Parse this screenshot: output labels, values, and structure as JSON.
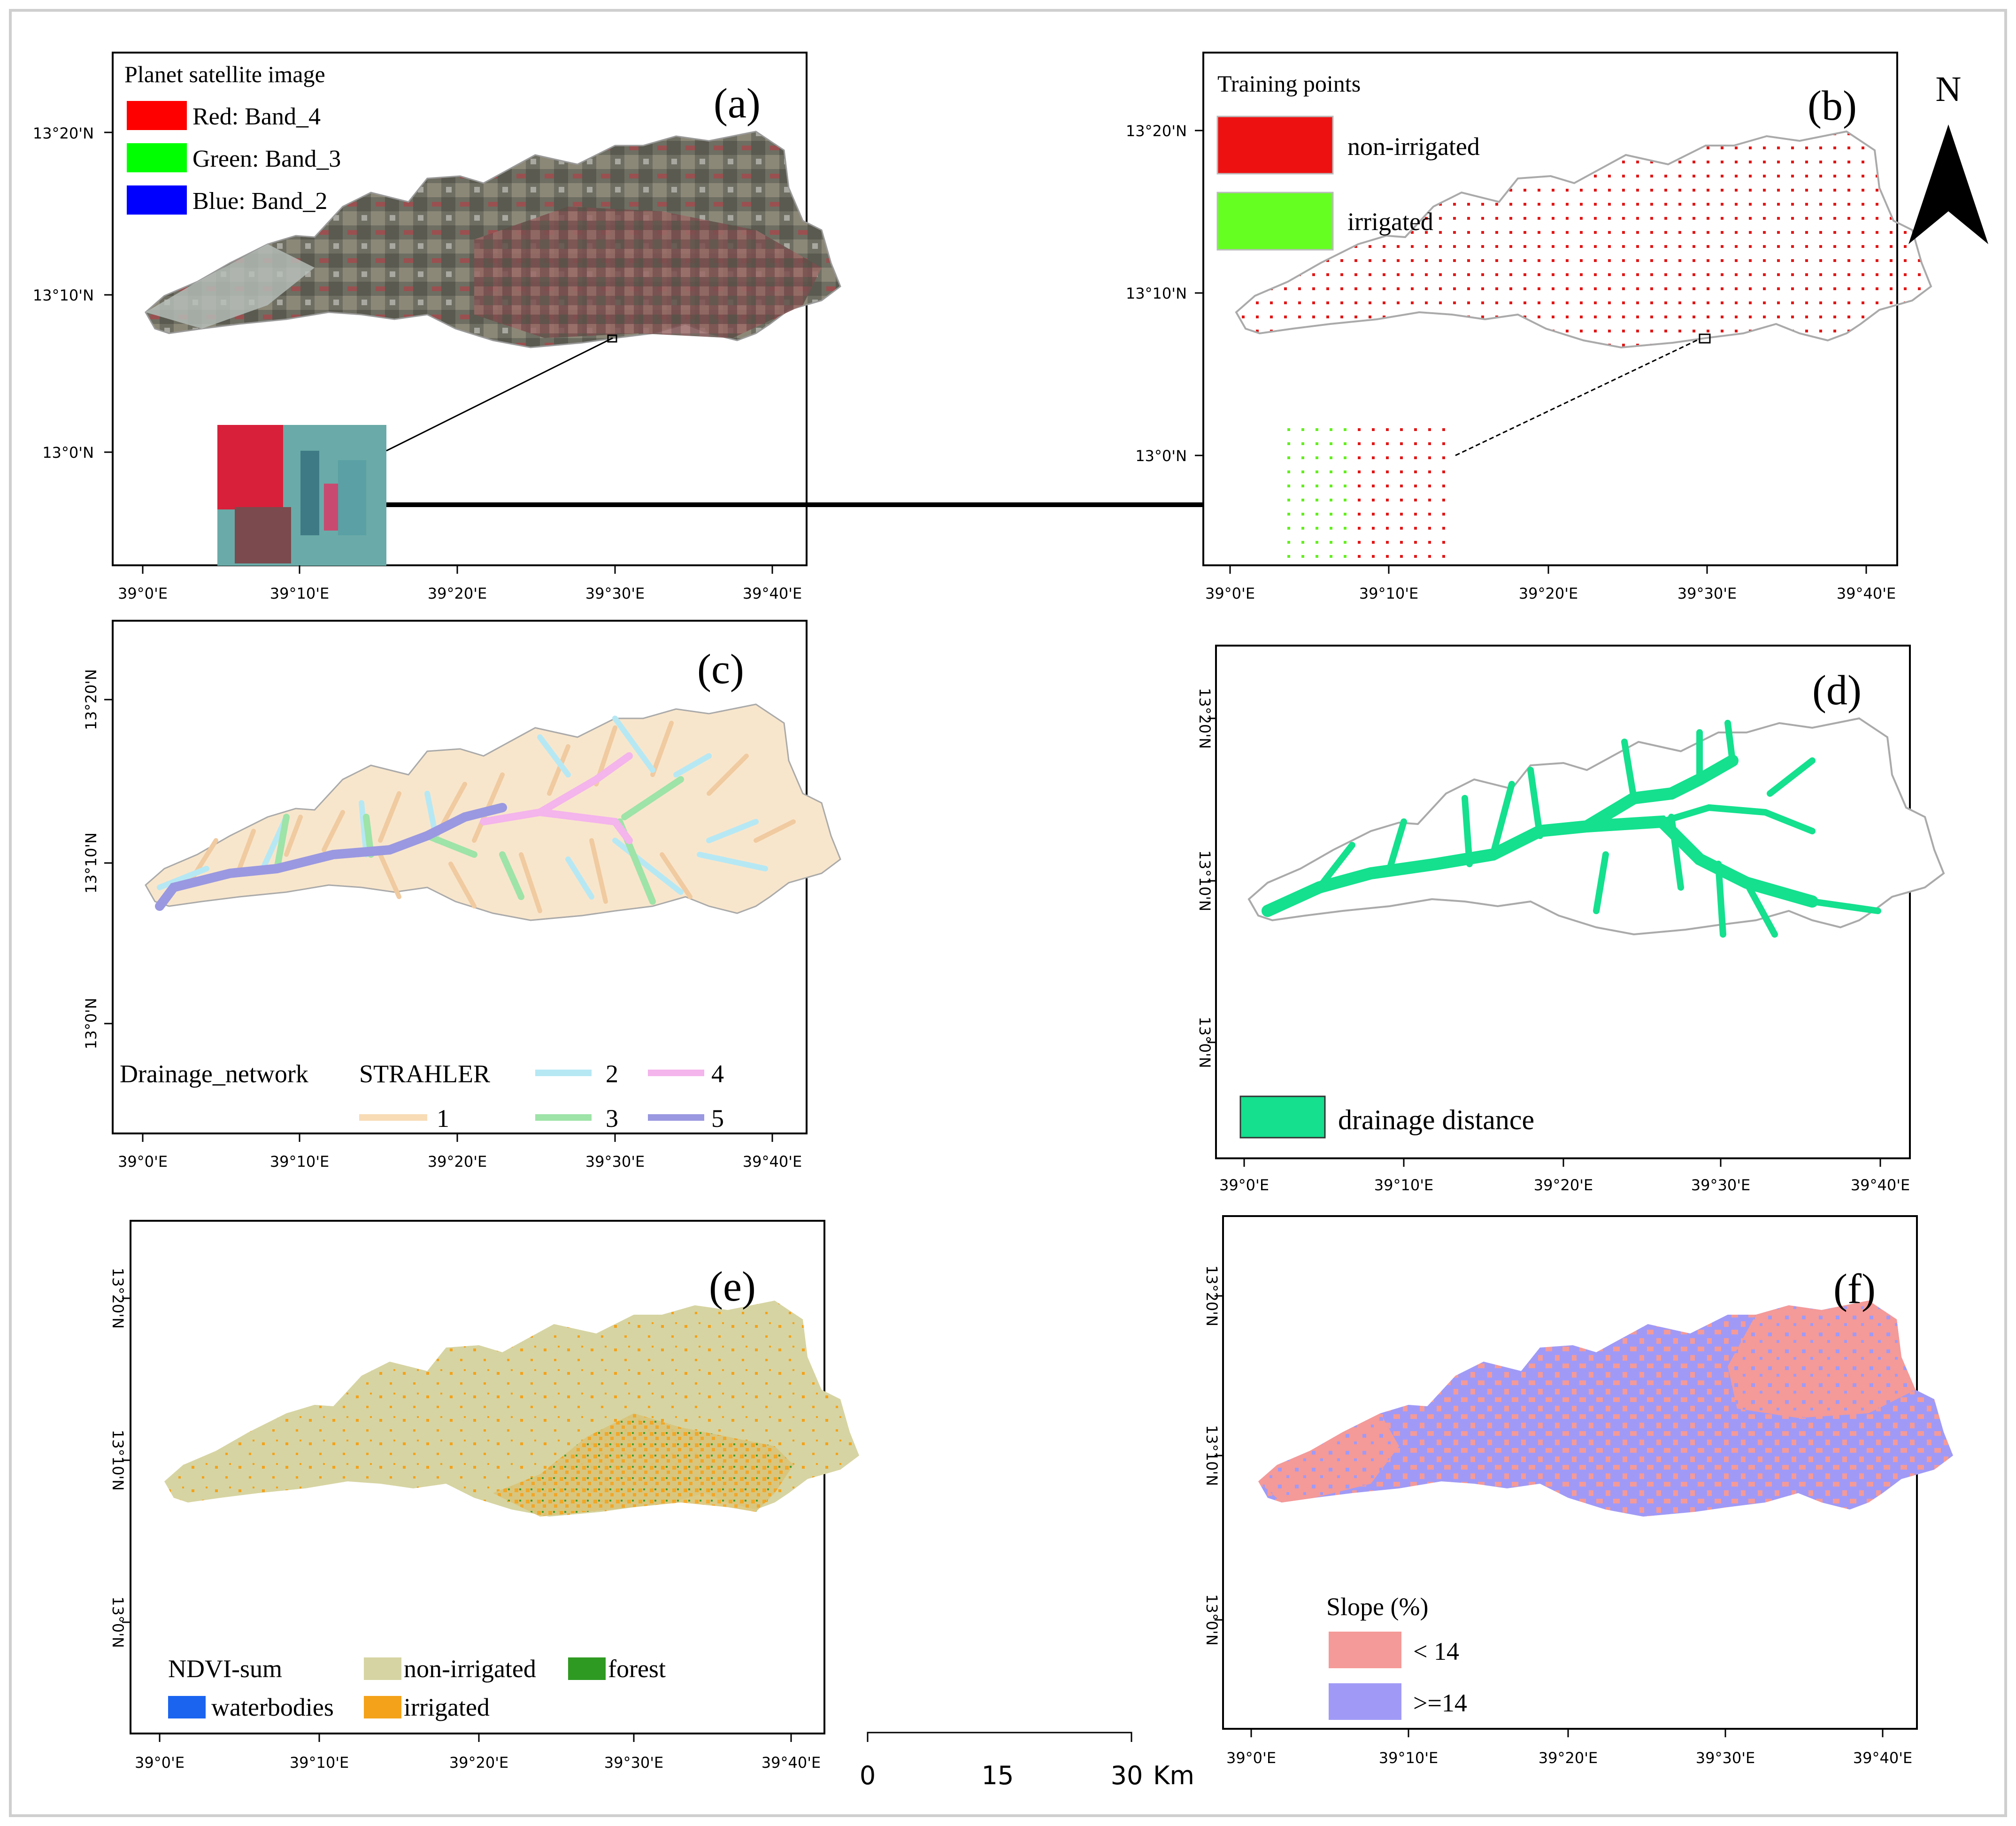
{
  "panels": [
    {
      "id": "a",
      "label": "(a)",
      "legend_title": "Planet satellite image",
      "legend": [
        {
          "label": "Red:    Band_4",
          "color": "#ff0000"
        },
        {
          "label": "Green: Band_3",
          "color": "#00ff00"
        },
        {
          "label": "Blue:   Band_2",
          "color": "#0000ff"
        }
      ],
      "y_ticks": [
        "13°20'N",
        "13°10'N",
        "13°0'N"
      ],
      "x_ticks": [
        "39°0'E",
        "39°10'E",
        "39°20'E",
        "39°30'E",
        "39°40'E"
      ]
    },
    {
      "id": "b",
      "label": "(b)",
      "legend_title": "Training points",
      "legend": [
        {
          "label": "non-irrigated",
          "color": "#ee1111"
        },
        {
          "label": "irrigated",
          "color": "#66ff22"
        }
      ],
      "y_ticks": [
        "13°20'N",
        "13°10'N",
        "13°0'N"
      ],
      "x_ticks": [
        "39°0'E",
        "39°10'E",
        "39°20'E",
        "39°30'E",
        "39°40'E"
      ]
    },
    {
      "id": "c",
      "label": "(c)",
      "legend_title": "Drainage_network",
      "legend_subtitle": "STRAHLER",
      "legend": [
        {
          "label": "1",
          "color": "#f8dcb6"
        },
        {
          "label": "2",
          "color": "#b6e8f4"
        },
        {
          "label": "3",
          "color": "#9ee3a8"
        },
        {
          "label": "4",
          "color": "#f4b4ec"
        },
        {
          "label": "5",
          "color": "#9a98e0"
        }
      ],
      "y_ticks": [
        "13°20'N",
        "13°10'N",
        "13°0'N"
      ],
      "x_ticks": [
        "39°0'E",
        "39°10'E",
        "39°20'E",
        "39°30'E",
        "39°40'E"
      ]
    },
    {
      "id": "d",
      "label": "(d)",
      "legend": [
        {
          "label": "drainage distance",
          "color": "#14e08e"
        }
      ],
      "y_ticks": [
        "13°20'N",
        "13°10'N",
        "13°0'N"
      ],
      "x_ticks": [
        "39°0'E",
        "39°10'E",
        "39°20'E",
        "39°30'E",
        "39°40'E"
      ]
    },
    {
      "id": "e",
      "label": "(e)",
      "legend_title": "NDVI-sum",
      "legend": [
        {
          "label": "non-irrigated",
          "color": "#d6d4a2"
        },
        {
          "label": "forest",
          "color": "#2e9a22"
        },
        {
          "label": "waterbodies",
          "color": "#1a64f0"
        },
        {
          "label": "irrigated",
          "color": "#f4a21a"
        }
      ],
      "y_ticks": [
        "13°20'N",
        "13°10'N",
        "13°0'N"
      ],
      "x_ticks": [
        "39°0'E",
        "39°10'E",
        "39°20'E",
        "39°30'E",
        "39°40'E"
      ]
    },
    {
      "id": "f",
      "label": "(f)",
      "legend_title": "Slope (%)",
      "legend": [
        {
          "label": "< 14",
          "color": "#f49a98"
        },
        {
          "label": ">=14",
          "color": "#a09af6"
        }
      ],
      "y_ticks": [
        "13°20'N",
        "13°10'N",
        "13°0'N"
      ],
      "x_ticks": [
        "39°0'E",
        "39°10'E",
        "39°20'E",
        "39°30'E",
        "39°40'E"
      ]
    }
  ],
  "north_arrow": {
    "label": "N"
  },
  "scale_bar": {
    "labels": [
      "0",
      "15",
      "30"
    ],
    "unit": "Km"
  }
}
